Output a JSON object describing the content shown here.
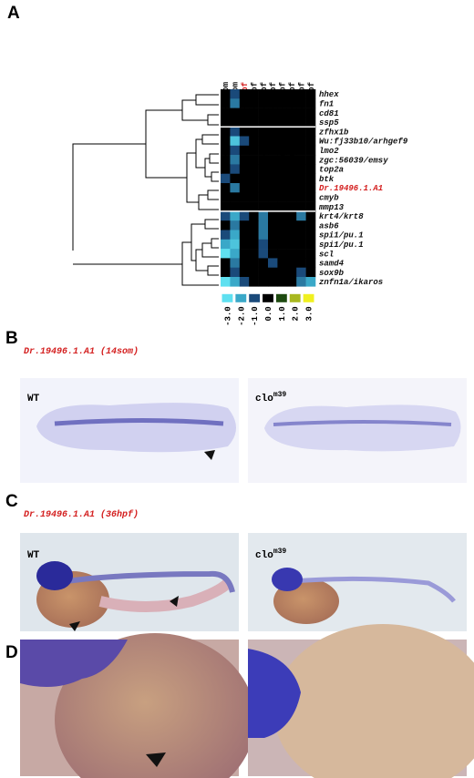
{
  "panel_a": {
    "letter": "A",
    "columns": [
      {
        "label": "scl-morpho-14som",
        "color": "#111111"
      },
      {
        "label": "clo-m39-14som",
        "color": "#111111"
      },
      {
        "label": "clo-m39-36hpf",
        "color": "#d42020"
      },
      {
        "label": "clo-s5-36hpf",
        "color": "#111111"
      },
      {
        "label": "scl-morpho-36hpf",
        "color": "#111111"
      },
      {
        "label": "vlt-m651-36hpf",
        "color": "#111111"
      },
      {
        "label": "mon-tb222-36hpf",
        "color": "#111111"
      },
      {
        "label": "mon-tg234-36hpf",
        "color": "#111111"
      },
      {
        "label": "bls-h75-36hpf",
        "color": "#111111"
      },
      {
        "label": "spt-b104-36hpf",
        "color": "#111111"
      }
    ],
    "genes": [
      {
        "label": "hhex",
        "color": "#111111"
      },
      {
        "label": "fn1",
        "color": "#111111"
      },
      {
        "label": "cd81",
        "color": "#111111"
      },
      {
        "label": "ssp5",
        "color": "#111111"
      },
      {
        "label": "zfhx1b",
        "color": "#111111"
      },
      {
        "label": "Wu:fj33b10/arhgef9",
        "color": "#111111"
      },
      {
        "label": "lmo2",
        "color": "#111111"
      },
      {
        "label": "zgc:56039/emsy",
        "color": "#111111"
      },
      {
        "label": "top2a",
        "color": "#111111"
      },
      {
        "label": "btk",
        "color": "#111111"
      },
      {
        "label": "Dr.19496.1.A1",
        "color": "#d42020"
      },
      {
        "label": "cmyb",
        "color": "#111111"
      },
      {
        "label": "mmp13",
        "color": "#111111"
      },
      {
        "label": "krt4/krt8",
        "color": "#111111"
      },
      {
        "label": "asb6",
        "color": "#111111"
      },
      {
        "label": "spi1/pu.1",
        "color": "#111111"
      },
      {
        "label": "spi1/pu.1",
        "color": "#111111"
      },
      {
        "label": "scl",
        "color": "#111111"
      },
      {
        "label": "samd4",
        "color": "#111111"
      },
      {
        "label": "sox9b",
        "color": "#111111"
      },
      {
        "label": "znfn1a/ikaros",
        "color": "#111111"
      }
    ],
    "values": [
      [
        0,
        -1,
        0,
        0,
        0,
        0,
        0,
        0,
        0,
        0
      ],
      [
        0,
        -1.5,
        0,
        0,
        0,
        0,
        0,
        0,
        0,
        0
      ],
      [
        0,
        0,
        0,
        0,
        0,
        0,
        0,
        0,
        0,
        0
      ],
      [
        0,
        0,
        0,
        0,
        0,
        0,
        0,
        0,
        0,
        0
      ],
      [
        0,
        -1,
        0,
        0,
        0,
        0,
        0,
        0,
        0,
        0
      ],
      [
        0,
        -2.5,
        -1,
        0,
        0,
        0,
        0,
        0,
        0,
        0
      ],
      [
        0,
        -1,
        0,
        0,
        0,
        0,
        0,
        0,
        0,
        0
      ],
      [
        0,
        -1.5,
        0,
        0,
        0,
        0,
        0,
        0,
        0,
        0
      ],
      [
        0,
        -1,
        0,
        0,
        0,
        0,
        0,
        0,
        0,
        0
      ],
      [
        -1,
        0,
        0,
        0,
        0,
        0,
        0,
        0,
        0,
        0
      ],
      [
        0,
        -1.5,
        0,
        0,
        0,
        0,
        0,
        0,
        0,
        0
      ],
      [
        0,
        0,
        0,
        0,
        0,
        0,
        0,
        0,
        0,
        0
      ],
      [
        0,
        0,
        0,
        0,
        0,
        0,
        0,
        0,
        0,
        0
      ],
      [
        -1,
        -2,
        -1,
        0,
        -1.5,
        0,
        0,
        0,
        -1.5,
        0
      ],
      [
        0,
        -1.5,
        0,
        0,
        -1.5,
        0,
        0,
        0,
        0,
        0
      ],
      [
        -1,
        -2,
        0,
        0,
        -1.5,
        0,
        0,
        0,
        0,
        0
      ],
      [
        -2,
        -2.5,
        0,
        0,
        -1,
        0,
        0,
        0,
        0,
        0
      ],
      [
        -3,
        -2,
        0,
        0,
        -1,
        0,
        0,
        0,
        0,
        0
      ],
      [
        0,
        -1.5,
        0,
        0,
        0,
        -1,
        0,
        0,
        0,
        0
      ],
      [
        0,
        -1,
        0,
        0,
        0,
        0,
        0,
        0,
        -1,
        0
      ],
      [
        -3,
        -2,
        -1,
        0,
        0,
        0,
        0,
        0,
        -1.5,
        -2
      ]
    ],
    "scale_ticks": [
      {
        "value": -3,
        "label": "-3.0"
      },
      {
        "value": -2,
        "label": "-2.0"
      },
      {
        "value": -1,
        "label": "-1.0"
      },
      {
        "value": 0,
        "label": "0.0"
      },
      {
        "value": 1,
        "label": "1.0"
      },
      {
        "value": 2,
        "label": "2.0"
      },
      {
        "value": 3,
        "label": "3.0"
      }
    ],
    "scale_colors": [
      "#5fe0f0",
      "#3aa8c8",
      "#1a4a7a",
      "#000000",
      "#1e4a10",
      "#a8b820",
      "#f0f020"
    ]
  },
  "panel_b": {
    "letter": "B",
    "gene": "Dr.19496.1.A1",
    "stage": "(14som)",
    "wt": "WT",
    "mutant": "clo",
    "allele": "m39"
  },
  "panel_c": {
    "letter": "C",
    "gene": "Dr.19496.1.A1",
    "stage": "(36hpf)",
    "wt": "WT",
    "mutant": "clo",
    "allele": "m39"
  },
  "panel_d": {
    "letter": "D"
  }
}
